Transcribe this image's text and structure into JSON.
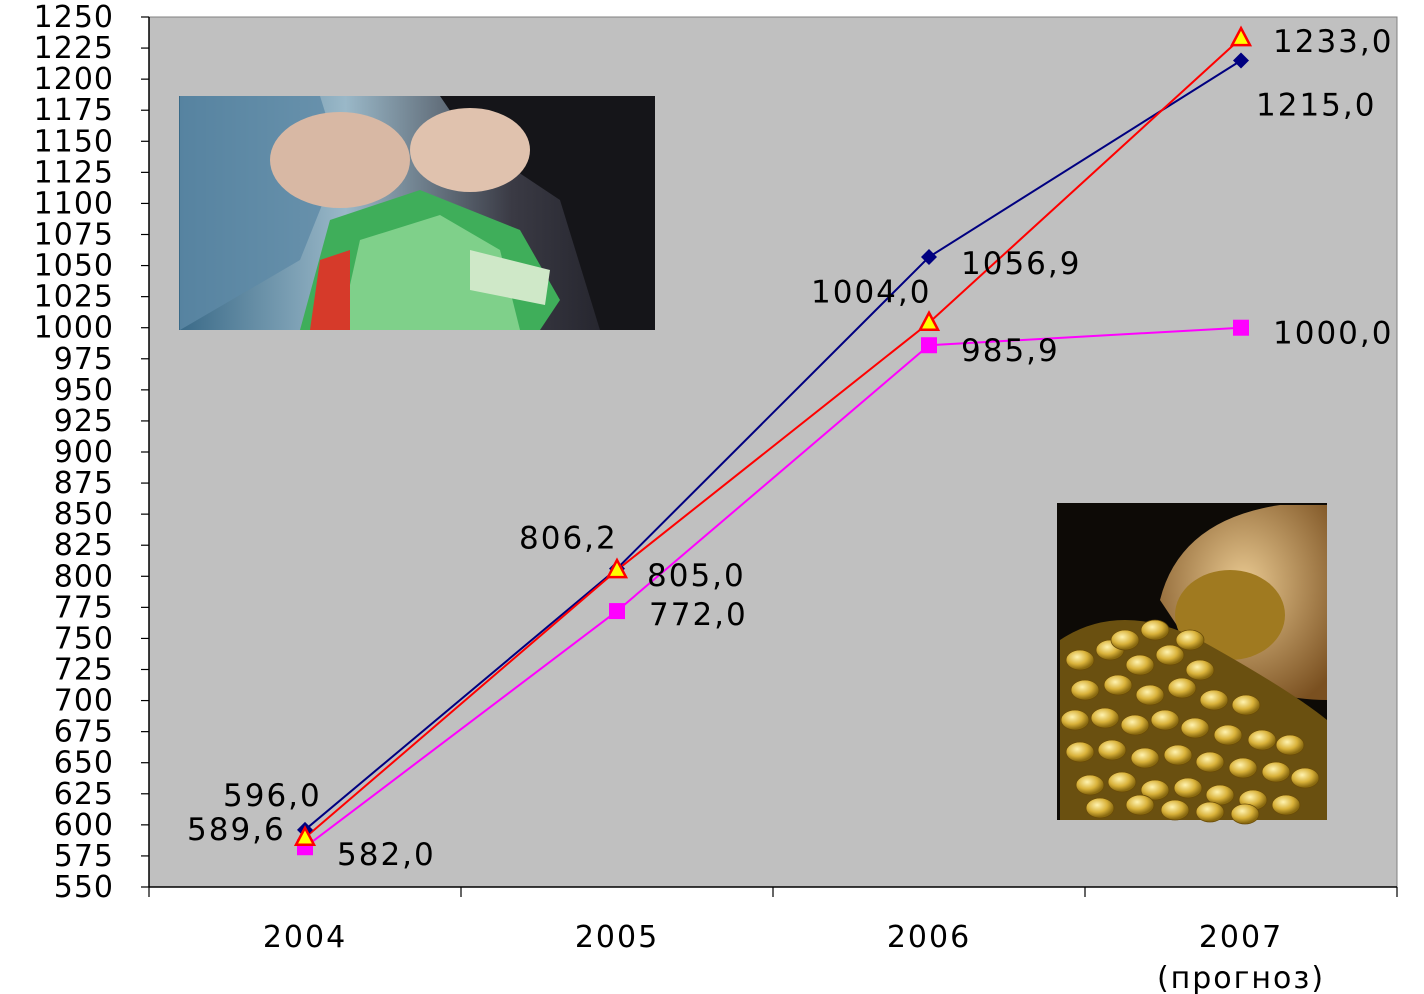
{
  "chart_data": {
    "type": "line",
    "title": "",
    "xlabel": "",
    "ylabel": "",
    "categories": [
      "2004",
      "2005",
      "2006",
      "2007"
    ],
    "category_sublabels": [
      "",
      "",
      "",
      "(прогноз)"
    ],
    "ylim": [
      550,
      1250
    ],
    "y_step": 25,
    "grid": false,
    "legend": "none",
    "plot_background": "#c0c0c0",
    "series": [
      {
        "values": [
          596.0,
          806.2,
          1056.9,
          1215.0
        ],
        "labels": [
          "596,0",
          "806,2",
          "1056,9",
          "1215,0"
        ],
        "color": "#000080",
        "marker": "diamond"
      },
      {
        "values": [
          589.6,
          805.0,
          1004.0,
          1233.0
        ],
        "labels": [
          "589,6",
          "805,0",
          "1004,0",
          "1233,0"
        ],
        "color": "#ff0000",
        "marker": "triangle",
        "marker_fill": "#ffff00"
      },
      {
        "values": [
          582.0,
          772.0,
          985.9,
          1000.0
        ],
        "labels": [
          "582,0",
          "772,0",
          "985,9",
          "1000,0"
        ],
        "color": "#ff00ff",
        "marker": "square"
      }
    ],
    "images": [
      {
        "icon": "hands-holding-banknotes-photo"
      },
      {
        "icon": "sack-of-gold-coins-photo"
      }
    ]
  }
}
